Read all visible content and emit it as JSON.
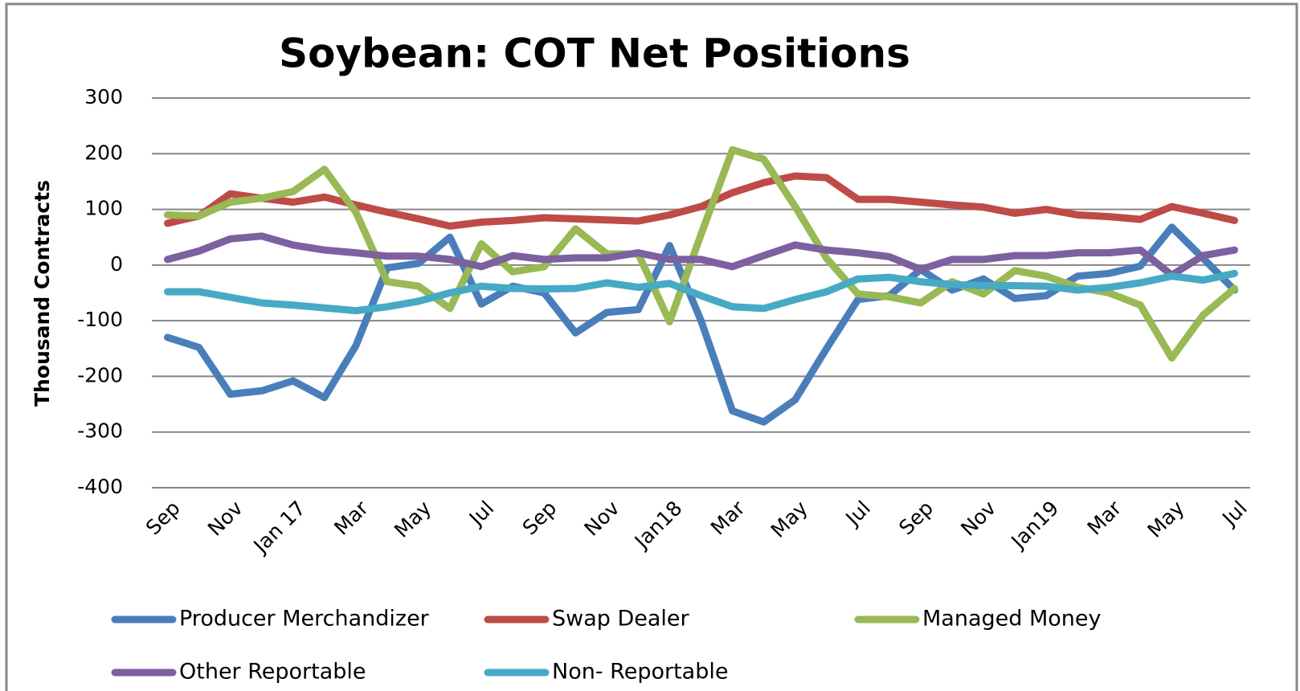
{
  "chart_data": {
    "type": "line",
    "title": "Soybean: COT Net Positions",
    "y_label": "Thousand Contracts",
    "categories": [
      "Sep",
      null,
      "Nov",
      null,
      "Jan 17",
      null,
      "Mar",
      null,
      "May",
      null,
      "Jul",
      null,
      "Sep",
      null,
      "Nov",
      null,
      "Jan18",
      null,
      "Mar",
      null,
      "May",
      null,
      "Jul",
      null,
      "Sep",
      null,
      "Nov",
      null,
      "Jan19",
      null,
      "Mar",
      null,
      "May",
      null,
      "Jul"
    ],
    "series": [
      {
        "name": "Producer Merchandizer",
        "color": "#4a7ebb",
        "values": [
          -130,
          -148,
          -232,
          -226,
          -208,
          -238,
          -145,
          -5,
          3,
          50,
          -70,
          -38,
          -50,
          -122,
          -85,
          -80,
          35,
          -100,
          -262,
          -282,
          -242,
          -150,
          -62,
          -55,
          -8,
          -45,
          -25,
          -60,
          -55,
          -20,
          -15,
          -2,
          68,
          12,
          -45
        ]
      },
      {
        "name": "Swap Dealer",
        "color": "#be4b48",
        "values": [
          75,
          88,
          128,
          120,
          113,
          122,
          108,
          95,
          83,
          70,
          77,
          80,
          85,
          83,
          81,
          79,
          90,
          105,
          130,
          148,
          160,
          157,
          118,
          118,
          113,
          108,
          104,
          93,
          100,
          90,
          87,
          82,
          105,
          93,
          80
        ]
      },
      {
        "name": "Managed Money",
        "color": "#98b954",
        "values": [
          90,
          88,
          113,
          120,
          132,
          172,
          95,
          -30,
          -38,
          -78,
          38,
          -12,
          -3,
          65,
          20,
          20,
          -102,
          55,
          207,
          190,
          105,
          12,
          -52,
          -57,
          -68,
          -30,
          -52,
          -10,
          -20,
          -40,
          -50,
          -72,
          -167,
          -90,
          -42
        ]
      },
      {
        "name": "Other Reportable",
        "color": "#7d60a0",
        "values": [
          10,
          25,
          47,
          52,
          36,
          27,
          22,
          16,
          16,
          10,
          -3,
          17,
          10,
          13,
          13,
          22,
          10,
          10,
          -3,
          17,
          36,
          27,
          22,
          15,
          -8,
          10,
          10,
          17,
          17,
          22,
          22,
          27,
          -18,
          17,
          27
        ]
      },
      {
        "name": "Non- Reportable",
        "color": "#46aac5",
        "values": [
          -48,
          -48,
          -58,
          -68,
          -72,
          -77,
          -82,
          -75,
          -65,
          -50,
          -38,
          -42,
          -43,
          -42,
          -32,
          -40,
          -33,
          -55,
          -75,
          -78,
          -62,
          -48,
          -25,
          -22,
          -30,
          -35,
          -37,
          -37,
          -38,
          -45,
          -40,
          -32,
          -20,
          -27,
          -15
        ]
      }
    ],
    "ylim": [
      -400,
      300
    ],
    "yticks": [
      -400,
      -300,
      -200,
      -100,
      0,
      100,
      200,
      300
    ],
    "grid": true,
    "legend": "bottom"
  }
}
